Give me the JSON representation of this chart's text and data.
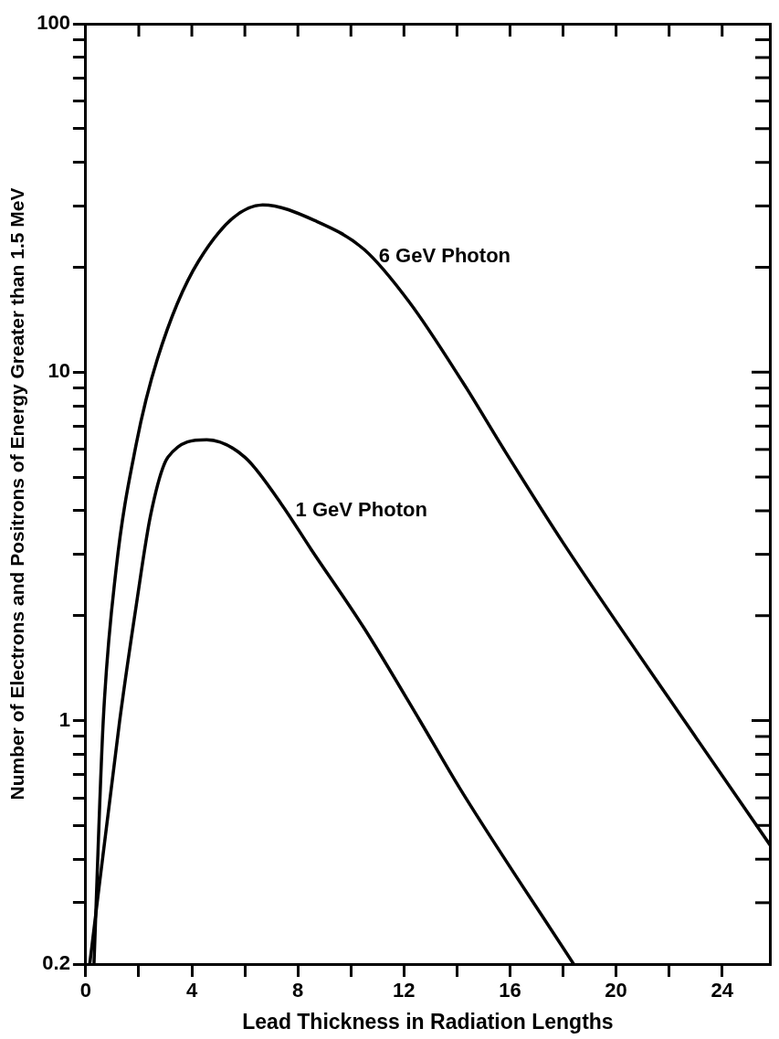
{
  "chart_data": {
    "type": "line",
    "xlabel": "Lead Thickness in Radiation Lengths",
    "ylabel": "Number of Electrons and Positrons of Energy Greater than 1.5 MeV",
    "log": "y",
    "grid": false,
    "legend": false,
    "marker": "none",
    "line_style": "solid",
    "xlim": [
      0,
      25.8
    ],
    "ylim": [
      0.2,
      100
    ],
    "xticks": [
      0,
      {
        "value": 2,
        "label": null
      },
      4,
      {
        "value": 6,
        "label": null
      },
      8,
      {
        "value": 10,
        "label": null
      },
      12,
      {
        "value": 14,
        "label": null
      },
      16,
      {
        "value": 18,
        "label": null
      },
      20,
      {
        "value": 22,
        "label": null
      },
      24
    ],
    "yticks": [
      0.2,
      {
        "value": 0.3,
        "label": null
      },
      {
        "value": 0.4,
        "label": null
      },
      {
        "value": 0.5,
        "label": null
      },
      {
        "value": 0.6,
        "label": null
      },
      {
        "value": 0.7,
        "label": null
      },
      {
        "value": 0.8,
        "label": null
      },
      {
        "value": 0.9,
        "label": null
      },
      1,
      {
        "value": 2,
        "label": null
      },
      {
        "value": 3,
        "label": null
      },
      {
        "value": 4,
        "label": null
      },
      {
        "value": 5,
        "label": null
      },
      {
        "value": 6,
        "label": null
      },
      {
        "value": 7,
        "label": null
      },
      {
        "value": 8,
        "label": null
      },
      {
        "value": 9,
        "label": null
      },
      10,
      {
        "value": 20,
        "label": null
      },
      {
        "value": 30,
        "label": null
      },
      {
        "value": 40,
        "label": null
      },
      {
        "value": 50,
        "label": null
      },
      {
        "value": 60,
        "label": null
      },
      {
        "value": 70,
        "label": null
      },
      {
        "value": 80,
        "label": null
      },
      {
        "value": 90,
        "label": null
      },
      100
    ],
    "series": [
      {
        "name": "6 GeV Photon",
        "color": "#000000",
        "x": [
          0.31,
          0.66,
          1.14,
          1.9,
          2.7,
          4.25,
          6.67,
          8.7,
          10.5,
          12.2,
          14.2,
          15.8,
          18,
          22.65,
          25.8
        ],
        "values": [
          0.2,
          1,
          2.7,
          6.2,
          10.9,
          20.8,
          30.2,
          27.1,
          22.5,
          15.9,
          9.4,
          5.95,
          3.24,
          0.98,
          0.44
        ]
      },
      {
        "name": "1 GeV Photon",
        "color": "#000000",
        "x": [
          0.15,
          1.28,
          1.9,
          2.45,
          3.1,
          4.56,
          6,
          7.36,
          8.5,
          10.5,
          12.6,
          14.1,
          18.4
        ],
        "values": [
          0.2,
          1,
          2.13,
          3.9,
          5.7,
          6.4,
          5.7,
          4.2,
          3.1,
          1.84,
          1,
          0.64,
          0.2
        ]
      }
    ]
  }
}
